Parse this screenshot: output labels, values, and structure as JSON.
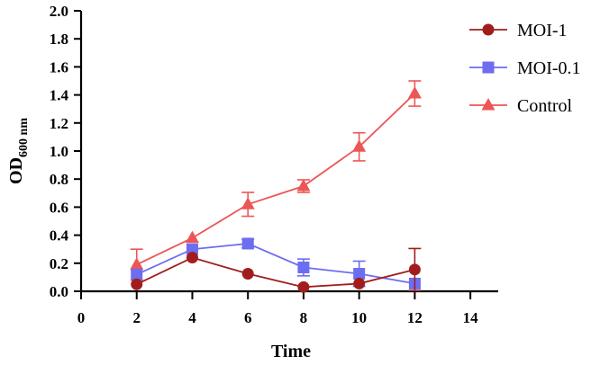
{
  "chart_data": {
    "type": "line",
    "title": "",
    "xlabel": "Time",
    "ylabel": "OD",
    "ylabel_sub": "600 nm",
    "xlim": [
      0,
      15
    ],
    "ylim": [
      0,
      2.0
    ],
    "xticks": [
      0,
      2,
      4,
      6,
      8,
      10,
      12,
      14
    ],
    "xtick_labels": [
      "0",
      "2",
      "4",
      "6",
      "8",
      "10",
      "12",
      "14"
    ],
    "yticks": [
      0.0,
      0.2,
      0.4,
      0.6,
      0.8,
      1.0,
      1.2,
      1.4,
      1.6,
      1.8,
      2.0
    ],
    "ytick_labels": [
      "0.0",
      "0.2",
      "0.4",
      "0.6",
      "0.8",
      "1.0",
      "1.2",
      "1.4",
      "1.6",
      "1.8",
      "2.0"
    ],
    "grid": false,
    "legend_position": "top-right",
    "series": [
      {
        "name": "MOI-1",
        "marker": "circle",
        "color": "#a11d1d",
        "x": [
          2,
          4,
          6,
          8,
          10,
          12
        ],
        "y": [
          0.05,
          0.24,
          0.125,
          0.03,
          0.055,
          0.155
        ],
        "err": [
          0,
          0,
          0,
          0,
          0,
          0.15
        ]
      },
      {
        "name": "MOI-0.1",
        "marker": "square",
        "color": "#6d6df0",
        "x": [
          2,
          4,
          6,
          8,
          10,
          12
        ],
        "y": [
          0.12,
          0.3,
          0.34,
          0.17,
          0.125,
          0.055
        ],
        "err": [
          0,
          0,
          0.03,
          0.06,
          0.09,
          0
        ]
      },
      {
        "name": "Control",
        "marker": "triangle",
        "color": "#ee5555",
        "x": [
          2,
          4,
          6,
          8,
          10,
          12
        ],
        "y": [
          0.19,
          0.38,
          0.62,
          0.75,
          1.03,
          1.41
        ],
        "err": [
          0.11,
          0,
          0.085,
          0.045,
          0.1,
          0.09
        ]
      }
    ]
  }
}
